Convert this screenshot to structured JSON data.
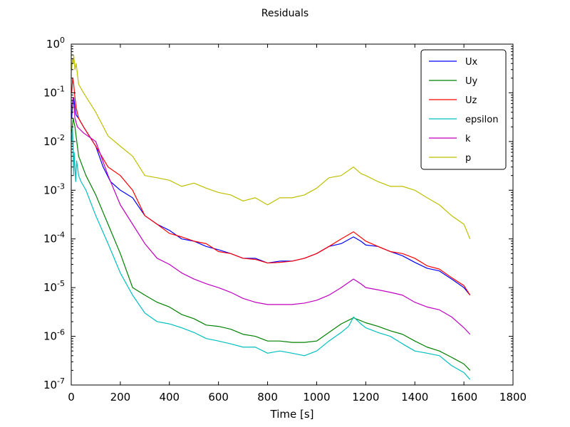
{
  "chart_data": {
    "type": "line",
    "title": "Residuals",
    "xlabel": "Time [s]",
    "ylabel": "",
    "xlim": [
      0,
      1800
    ],
    "ylim": [
      1e-07,
      1
    ],
    "yscale": "log",
    "x_ticks": [
      0,
      200,
      400,
      600,
      800,
      1000,
      1200,
      1400,
      1600,
      1800
    ],
    "y_ticks": [
      {
        "base": "10",
        "exp": "0",
        "value": 1
      },
      {
        "base": "10",
        "exp": "-1",
        "value": 0.1
      },
      {
        "base": "10",
        "exp": "-2",
        "value": 0.01
      },
      {
        "base": "10",
        "exp": "-3",
        "value": 0.001
      },
      {
        "base": "10",
        "exp": "-4",
        "value": 0.0001
      },
      {
        "base": "10",
        "exp": "-5",
        "value": 1e-05
      },
      {
        "base": "10",
        "exp": "-6",
        "value": 1e-06
      },
      {
        "base": "10",
        "exp": "-7",
        "value": 1e-07
      }
    ],
    "grid": false,
    "legend_position": "top-right",
    "series": [
      {
        "name": "Ux",
        "color": "#0000ff",
        "points": [
          [
            2,
            0.03
          ],
          [
            5,
            0.06
          ],
          [
            10,
            0.08
          ],
          [
            15,
            0.05
          ],
          [
            20,
            0.035
          ],
          [
            30,
            0.03
          ],
          [
            50,
            0.02
          ],
          [
            100,
            0.008
          ],
          [
            130,
            0.003
          ],
          [
            160,
            0.0015
          ],
          [
            200,
            0.001
          ],
          [
            250,
            0.0007
          ],
          [
            300,
            0.0003
          ],
          [
            350,
            0.0002
          ],
          [
            400,
            0.00015
          ],
          [
            450,
            0.0001
          ],
          [
            500,
            9e-05
          ],
          [
            550,
            7e-05
          ],
          [
            600,
            6e-05
          ],
          [
            650,
            5e-05
          ],
          [
            700,
            4e-05
          ],
          [
            750,
            4e-05
          ],
          [
            800,
            3.2e-05
          ],
          [
            850,
            3.5e-05
          ],
          [
            900,
            3.5e-05
          ],
          [
            950,
            4e-05
          ],
          [
            1000,
            5e-05
          ],
          [
            1050,
            7e-05
          ],
          [
            1100,
            8e-05
          ],
          [
            1150,
            0.00011
          ],
          [
            1180,
            9e-05
          ],
          [
            1200,
            7.5e-05
          ],
          [
            1250,
            7e-05
          ],
          [
            1300,
            5.5e-05
          ],
          [
            1350,
            4.5e-05
          ],
          [
            1400,
            3.3e-05
          ],
          [
            1450,
            2.5e-05
          ],
          [
            1500,
            2.2e-05
          ],
          [
            1550,
            1.5e-05
          ],
          [
            1600,
            1e-05
          ],
          [
            1625,
            7e-06
          ]
        ]
      },
      {
        "name": "Uy",
        "color": "#008000",
        "points": [
          [
            2,
            0.015
          ],
          [
            8,
            0.03
          ],
          [
            15,
            0.02
          ],
          [
            30,
            0.005
          ],
          [
            60,
            0.002
          ],
          [
            100,
            0.0008
          ],
          [
            150,
            0.0002
          ],
          [
            200,
            5e-05
          ],
          [
            250,
            1e-05
          ],
          [
            300,
            7e-06
          ],
          [
            350,
            5e-06
          ],
          [
            400,
            4e-06
          ],
          [
            450,
            2.8e-06
          ],
          [
            500,
            2.3e-06
          ],
          [
            550,
            1.7e-06
          ],
          [
            600,
            1.6e-06
          ],
          [
            650,
            1.4e-06
          ],
          [
            700,
            1.1e-06
          ],
          [
            750,
            1e-06
          ],
          [
            800,
            8e-07
          ],
          [
            850,
            8e-07
          ],
          [
            900,
            7.5e-07
          ],
          [
            950,
            7.5e-07
          ],
          [
            1000,
            8e-07
          ],
          [
            1050,
            1.2e-06
          ],
          [
            1100,
            1.8e-06
          ],
          [
            1150,
            2.4e-06
          ],
          [
            1200,
            1.9e-06
          ],
          [
            1250,
            1.6e-06
          ],
          [
            1300,
            1.3e-06
          ],
          [
            1350,
            1.1e-06
          ],
          [
            1400,
            8e-07
          ],
          [
            1450,
            6e-07
          ],
          [
            1500,
            5e-07
          ],
          [
            1550,
            3.7e-07
          ],
          [
            1600,
            2.7e-07
          ],
          [
            1625,
            2e-07
          ]
        ]
      },
      {
        "name": "Uz",
        "color": "#ff0000",
        "points": [
          [
            2,
            0.1
          ],
          [
            6,
            0.2
          ],
          [
            10,
            0.15
          ],
          [
            15,
            0.08
          ],
          [
            20,
            0.05
          ],
          [
            30,
            0.03
          ],
          [
            50,
            0.02
          ],
          [
            100,
            0.008
          ],
          [
            150,
            0.003
          ],
          [
            200,
            0.002
          ],
          [
            250,
            0.001
          ],
          [
            300,
            0.0003
          ],
          [
            350,
            0.0002
          ],
          [
            400,
            0.00013
          ],
          [
            450,
            0.00011
          ],
          [
            500,
            9e-05
          ],
          [
            550,
            8e-05
          ],
          [
            600,
            5.5e-05
          ],
          [
            650,
            5e-05
          ],
          [
            700,
            4e-05
          ],
          [
            750,
            3.8e-05
          ],
          [
            800,
            3.2e-05
          ],
          [
            850,
            3.3e-05
          ],
          [
            900,
            3.5e-05
          ],
          [
            950,
            4e-05
          ],
          [
            1000,
            5e-05
          ],
          [
            1050,
            7e-05
          ],
          [
            1100,
            0.0001
          ],
          [
            1150,
            0.00014
          ],
          [
            1200,
            9e-05
          ],
          [
            1250,
            7e-05
          ],
          [
            1300,
            5.5e-05
          ],
          [
            1350,
            5e-05
          ],
          [
            1400,
            4e-05
          ],
          [
            1450,
            2.8e-05
          ],
          [
            1500,
            2.4e-05
          ],
          [
            1550,
            1.6e-05
          ],
          [
            1600,
            1.1e-05
          ],
          [
            1625,
            7e-06
          ]
        ]
      },
      {
        "name": "epsilon",
        "color": "#00bfbf",
        "points": [
          [
            2,
            0.01
          ],
          [
            5,
            0.02
          ],
          [
            8,
            0.005
          ],
          [
            10,
            0.002
          ],
          [
            12,
            0.006
          ],
          [
            15,
            0.003
          ],
          [
            18,
            0.0015
          ],
          [
            22,
            0.004
          ],
          [
            30,
            0.002
          ],
          [
            40,
            0.0015
          ],
          [
            60,
            0.001
          ],
          [
            100,
            0.0003
          ],
          [
            150,
            8e-05
          ],
          [
            200,
            2e-05
          ],
          [
            250,
            7e-06
          ],
          [
            300,
            3e-06
          ],
          [
            350,
            2e-06
          ],
          [
            400,
            1.8e-06
          ],
          [
            450,
            1.5e-06
          ],
          [
            500,
            1.2e-06
          ],
          [
            550,
            9e-07
          ],
          [
            600,
            8e-07
          ],
          [
            650,
            7e-07
          ],
          [
            700,
            6e-07
          ],
          [
            750,
            6e-07
          ],
          [
            800,
            4.5e-07
          ],
          [
            850,
            5e-07
          ],
          [
            900,
            4.5e-07
          ],
          [
            950,
            4e-07
          ],
          [
            1000,
            5e-07
          ],
          [
            1050,
            8e-07
          ],
          [
            1100,
            1.2e-06
          ],
          [
            1130,
            1.6e-06
          ],
          [
            1150,
            2.5e-06
          ],
          [
            1180,
            1.8e-06
          ],
          [
            1200,
            1.5e-06
          ],
          [
            1250,
            1.2e-06
          ],
          [
            1300,
            1e-06
          ],
          [
            1350,
            7e-07
          ],
          [
            1400,
            5e-07
          ],
          [
            1450,
            4.5e-07
          ],
          [
            1500,
            4e-07
          ],
          [
            1550,
            2.5e-07
          ],
          [
            1600,
            1.8e-07
          ],
          [
            1625,
            1.3e-07
          ]
        ]
      },
      {
        "name": "k",
        "color": "#bf00bf",
        "points": [
          [
            2,
            0.05
          ],
          [
            8,
            0.08
          ],
          [
            15,
            0.03
          ],
          [
            25,
            0.02
          ],
          [
            50,
            0.015
          ],
          [
            100,
            0.01
          ],
          [
            150,
            0.002
          ],
          [
            200,
            0.0005
          ],
          [
            250,
            0.0002
          ],
          [
            300,
            8e-05
          ],
          [
            350,
            4e-05
          ],
          [
            400,
            3e-05
          ],
          [
            450,
            2e-05
          ],
          [
            500,
            1.5e-05
          ],
          [
            550,
            1.2e-05
          ],
          [
            600,
            1e-05
          ],
          [
            650,
            8e-06
          ],
          [
            700,
            6e-06
          ],
          [
            750,
            5e-06
          ],
          [
            800,
            4.5e-06
          ],
          [
            850,
            4.5e-06
          ],
          [
            900,
            4.5e-06
          ],
          [
            950,
            4.8e-06
          ],
          [
            1000,
            5.5e-06
          ],
          [
            1050,
            7e-06
          ],
          [
            1100,
            1e-05
          ],
          [
            1150,
            1.5e-05
          ],
          [
            1180,
            1.2e-05
          ],
          [
            1200,
            1e-05
          ],
          [
            1250,
            9e-06
          ],
          [
            1300,
            8e-06
          ],
          [
            1350,
            7e-06
          ],
          [
            1400,
            5e-06
          ],
          [
            1450,
            4e-06
          ],
          [
            1500,
            3.5e-06
          ],
          [
            1550,
            2.5e-06
          ],
          [
            1600,
            1.5e-06
          ],
          [
            1625,
            1.1e-06
          ]
        ]
      },
      {
        "name": "p",
        "color": "#bfbf00",
        "points": [
          [
            2,
            0.3
          ],
          [
            5,
            0.5
          ],
          [
            8,
            0.4
          ],
          [
            10,
            0.6
          ],
          [
            15,
            0.3
          ],
          [
            20,
            0.4
          ],
          [
            30,
            0.15
          ],
          [
            50,
            0.1
          ],
          [
            100,
            0.04
          ],
          [
            150,
            0.013
          ],
          [
            200,
            0.008
          ],
          [
            250,
            0.005
          ],
          [
            300,
            0.002
          ],
          [
            350,
            0.0018
          ],
          [
            400,
            0.0016
          ],
          [
            450,
            0.0012
          ],
          [
            500,
            0.0014
          ],
          [
            550,
            0.0011
          ],
          [
            600,
            0.0009
          ],
          [
            650,
            0.0008
          ],
          [
            700,
            0.0006
          ],
          [
            750,
            0.0007
          ],
          [
            800,
            0.0005
          ],
          [
            850,
            0.0007
          ],
          [
            900,
            0.0007
          ],
          [
            950,
            0.0008
          ],
          [
            1000,
            0.0011
          ],
          [
            1050,
            0.0018
          ],
          [
            1100,
            0.002
          ],
          [
            1150,
            0.003
          ],
          [
            1180,
            0.0022
          ],
          [
            1200,
            0.002
          ],
          [
            1250,
            0.0015
          ],
          [
            1300,
            0.0012
          ],
          [
            1350,
            0.0012
          ],
          [
            1400,
            0.001
          ],
          [
            1450,
            0.0007
          ],
          [
            1500,
            0.0005
          ],
          [
            1550,
            0.0003
          ],
          [
            1600,
            0.0002
          ],
          [
            1625,
            0.0001
          ]
        ]
      }
    ]
  }
}
